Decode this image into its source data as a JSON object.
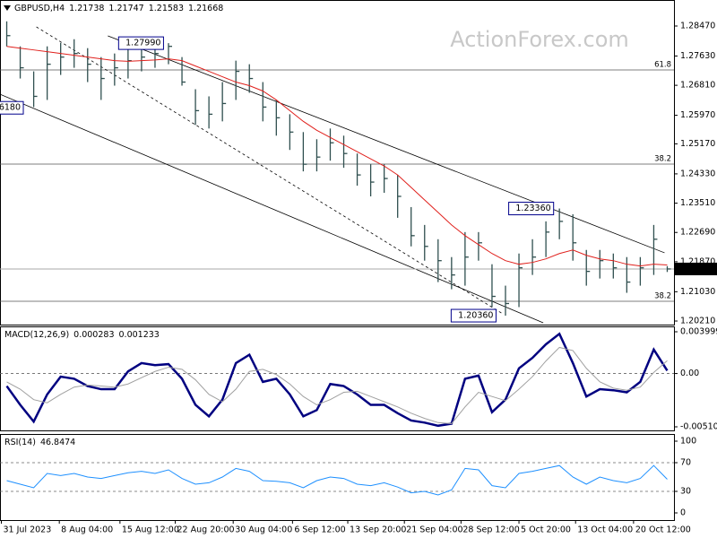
{
  "chart_data": [
    {
      "type": "ohlc",
      "title": "GBPUSD,H4",
      "title_values": [
        1.21738,
        1.21747,
        1.21583,
        1.21668
      ],
      "watermark": "ActionForex.com",
      "xlim": [
        -0.5,
        49.5
      ],
      "xticks": [
        {
          "value": -0.4,
          "label": "31 Jul 2023"
        },
        {
          "value": 3.9,
          "label": "8 Aug 04:00"
        },
        {
          "value": 8.4,
          "label": "15 Aug 12:00"
        },
        {
          "value": 12.5,
          "label": "22 Aug 20:00"
        },
        {
          "value": 16.8,
          "label": "30 Aug 04:00"
        },
        {
          "value": 21.2,
          "label": "6 Sep 12:00"
        },
        {
          "value": 25.3,
          "label": "13 Sep 20:00"
        },
        {
          "value": 29.5,
          "label": "21 Sep 04:00"
        },
        {
          "value": 33.7,
          "label": "28 Sep 12:00"
        },
        {
          "value": 38,
          "label": "5 Oct 20:00"
        },
        {
          "value": 42.2,
          "label": "13 Oct 04:00"
        },
        {
          "value": 46.5,
          "label": "20 Oct 12:00"
        }
      ],
      "ylim": [
        1.2011,
        1.29198
      ],
      "yticks": [
        {
          "value": 1.2847,
          "label": "1.28470"
        },
        {
          "value": 1.2763,
          "label": "1.27630"
        },
        {
          "value": 1.2681,
          "label": "1.26810"
        },
        {
          "value": 1.2597,
          "label": "1.25970"
        },
        {
          "value": 1.2517,
          "label": "1.25170"
        },
        {
          "value": 1.2433,
          "label": "1.24330"
        },
        {
          "value": 1.2351,
          "label": "1.23510"
        },
        {
          "value": 1.2269,
          "label": "1.22690"
        },
        {
          "value": 1.2187,
          "label": "1.21870"
        },
        {
          "value": 1.2103,
          "label": "1.21030"
        },
        {
          "value": 1.2021,
          "label": "1.20210"
        }
      ],
      "color": "#2f4f4f",
      "high": [
        1.286,
        1.279,
        1.272,
        1.279,
        1.28,
        1.281,
        1.2785,
        1.276,
        1.277,
        1.279,
        1.2795,
        1.279,
        1.2799,
        1.276,
        1.267,
        1.265,
        1.269,
        1.275,
        1.274,
        1.269,
        1.264,
        1.26,
        1.255,
        1.253,
        1.256,
        1.254,
        1.249,
        1.246,
        1.246,
        1.243,
        1.234,
        1.229,
        1.225,
        1.22,
        1.227,
        1.227,
        1.218,
        1.212,
        1.221,
        1.225,
        1.23,
        1.2336,
        1.232,
        1.222,
        1.222,
        1.221,
        1.22,
        1.22,
        1.229,
        1.21747
      ],
      "low": [
        1.279,
        1.27,
        1.262,
        1.264,
        1.271,
        1.273,
        1.269,
        1.264,
        1.268,
        1.27,
        1.272,
        1.273,
        1.274,
        1.268,
        1.257,
        1.256,
        1.258,
        1.264,
        1.266,
        1.258,
        1.254,
        1.25,
        1.244,
        1.244,
        1.247,
        1.245,
        1.24,
        1.237,
        1.238,
        1.231,
        1.223,
        1.219,
        1.213,
        1.211,
        1.212,
        1.219,
        1.206,
        1.2036,
        1.206,
        1.215,
        1.22,
        1.225,
        1.219,
        1.212,
        1.214,
        1.214,
        1.21,
        1.212,
        1.215,
        1.21583
      ],
      "close": [
        1.282,
        1.273,
        1.265,
        1.274,
        1.276,
        1.277,
        1.274,
        1.27,
        1.273,
        1.275,
        1.276,
        1.277,
        1.279,
        1.269,
        1.261,
        1.26,
        1.263,
        1.272,
        1.27,
        1.262,
        1.259,
        1.255,
        1.246,
        1.248,
        1.252,
        1.249,
        1.243,
        1.241,
        1.242,
        1.237,
        1.226,
        1.223,
        1.219,
        1.215,
        1.22,
        1.224,
        1.209,
        1.207,
        1.217,
        1.22,
        1.227,
        1.23,
        1.224,
        1.216,
        1.219,
        1.217,
        1.213,
        1.217,
        1.225,
        1.21668
      ],
      "ma": {
        "color": "#e0201c",
        "values": [
          1.279,
          1.2785,
          1.278,
          1.2775,
          1.277,
          1.2765,
          1.276,
          1.2755,
          1.275,
          1.2748,
          1.275,
          1.2752,
          1.2755,
          1.275,
          1.2735,
          1.272,
          1.2705,
          1.269,
          1.268,
          1.2665,
          1.264,
          1.261,
          1.258,
          1.2555,
          1.2535,
          1.2515,
          1.2495,
          1.2475,
          1.2455,
          1.243,
          1.2395,
          1.236,
          1.2325,
          1.229,
          1.226,
          1.2235,
          1.221,
          1.219,
          1.218,
          1.2185,
          1.2195,
          1.221,
          1.222,
          1.2205,
          1.2195,
          1.219,
          1.218,
          1.2175,
          1.218,
          1.2178
        ]
      },
      "last_price": 1.21668,
      "levels": [
        {
          "value": 1.2724,
          "label": "61.8"
        },
        {
          "value": 1.24603,
          "label": "38.2"
        },
        {
          "value": 1.20762,
          "label": "38.2"
        }
      ],
      "annotations": [
        {
          "x": 11.63,
          "value": 1.2799,
          "label": "1.27990"
        },
        {
          "x": 40.57,
          "value": 1.2336,
          "label": "1.23360"
        },
        {
          "x": 36.3,
          "value": 1.2036,
          "label": "1.20360"
        },
        {
          "x": 1.23,
          "value": 1.2618,
          "label": "6180"
        }
      ],
      "trendlines": [
        {
          "x1": 7.5,
          "y1": 1.28194,
          "x2": 48.8,
          "y2": 1.2212,
          "dashed": false
        },
        {
          "x1": -0.5,
          "y1": 1.2656,
          "x2": 39.8,
          "y2": 1.2016,
          "dashed": false
        },
        {
          "x1": 2.2,
          "y1": 1.28445,
          "x2": 36.8,
          "y2": 1.20411,
          "dashed": true
        }
      ]
    },
    {
      "type": "line",
      "title": "MACD(12,26,9)",
      "title_values": [
        0.000283,
        0.001233
      ],
      "ylim": [
        -0.005447,
        0.004514
      ],
      "yticks": [
        0.003999,
        {
          "value": 0,
          "label": "0.00"
        },
        -0.005103
      ],
      "levels": [
        0
      ],
      "series": [
        {
          "color": "#000080",
          "width": 2.5,
          "values": [
            -0.0012,
            -0.003,
            -0.0046,
            -0.002,
            -0.0003,
            -0.0005,
            -0.0012,
            -0.0015,
            -0.0015,
            0.0002,
            0.001,
            0.0008,
            0.0009,
            -0.0005,
            -0.003,
            -0.0041,
            -0.0025,
            0.001,
            0.0018,
            -0.0008,
            -0.0005,
            -0.002,
            -0.0041,
            -0.0035,
            -0.001,
            -0.0012,
            -0.002,
            -0.003,
            -0.003,
            -0.0038,
            -0.0045,
            -0.0047,
            -0.005,
            -0.0048,
            -0.0005,
            -0.0002,
            -0.0037,
            -0.0025,
            0.0005,
            0.0015,
            0.0028,
            0.0038,
            0.001,
            -0.0022,
            -0.0015,
            -0.0016,
            -0.0018,
            -0.0008,
            0.0023,
            0.000283
          ]
        },
        {
          "color": "#a0a0a0",
          "width": 1,
          "values": [
            -0.0008,
            -0.0015,
            -0.0025,
            -0.0028,
            -0.002,
            -0.0013,
            -0.0011,
            -0.0012,
            -0.0013,
            -0.001,
            -0.0004,
            0.0002,
            0.0006,
            0.0004,
            -0.0006,
            -0.002,
            -0.0027,
            -0.0015,
            0.0002,
            0.0004,
            -0.0001,
            -0.001,
            -0.0022,
            -0.003,
            -0.0025,
            -0.0018,
            -0.0017,
            -0.0022,
            -0.0027,
            -0.0032,
            -0.0038,
            -0.0043,
            -0.0047,
            -0.0048,
            -0.0032,
            -0.0018,
            -0.0022,
            -0.0026,
            -0.0015,
            -0.0003,
            0.0012,
            0.0025,
            0.0022,
            0.0005,
            -0.0008,
            -0.0014,
            -0.0016,
            -0.0013,
            0.0001,
            0.001233
          ]
        }
      ]
    },
    {
      "type": "line",
      "title": "RSI(14)",
      "title_values": [
        46.8474
      ],
      "ylim": [
        -10,
        110
      ],
      "yticks": [
        100,
        70,
        30,
        0
      ],
      "levels": [
        70,
        30
      ],
      "series": [
        {
          "color": "#1e90ff",
          "width": 1,
          "values": [
            45,
            40,
            35,
            55,
            52,
            55,
            50,
            48,
            52,
            56,
            58,
            55,
            60,
            48,
            40,
            42,
            50,
            62,
            58,
            45,
            44,
            42,
            35,
            45,
            50,
            48,
            40,
            38,
            42,
            36,
            28,
            30,
            25,
            32,
            62,
            60,
            38,
            35,
            55,
            58,
            62,
            66,
            50,
            40,
            50,
            45,
            42,
            48,
            66,
            46.8474
          ]
        }
      ]
    }
  ]
}
